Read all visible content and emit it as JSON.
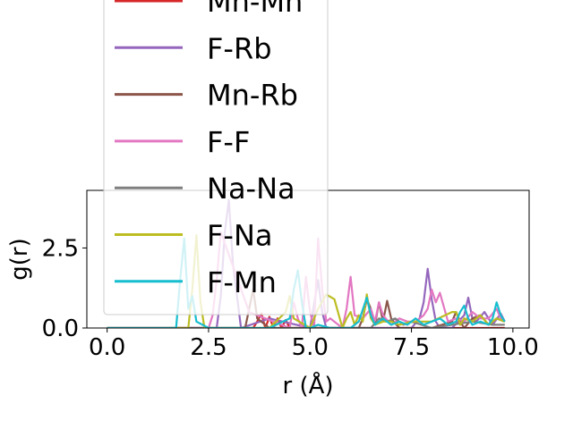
{
  "chart_data": {
    "type": "line",
    "title": "",
    "xlabel": "r (Å)",
    "ylabel": "g(r)",
    "xlim": [
      -0.5,
      10.4
    ],
    "ylim": [
      0,
      4.3
    ],
    "xticks": [
      "0.0",
      "2.5",
      "5.0",
      "7.5",
      "10.0"
    ],
    "yticks": [
      "0.0",
      "2.5"
    ],
    "legend_placement": "upper-left",
    "series": [
      {
        "name": "Mn-Mn",
        "color": "#d62728",
        "x": [
          0,
          1,
          2,
          3,
          3.6,
          3.7,
          3.8,
          3.9,
          4.0,
          4.1,
          4.2,
          4.3,
          4.4,
          4.5,
          4.6,
          5,
          6,
          7,
          8,
          9,
          9.8
        ],
        "y": [
          0,
          0,
          0,
          0,
          0,
          0.2,
          0.45,
          0,
          0.35,
          0,
          0.3,
          0,
          0.25,
          0,
          0,
          0,
          0,
          0,
          0,
          0,
          0
        ]
      },
      {
        "name": "F-Rb",
        "color": "#9467bd",
        "x": [
          0,
          1,
          2,
          2.7,
          2.8,
          2.9,
          3.0,
          3.1,
          3.2,
          3.3,
          4,
          5,
          5.2,
          5.3,
          5.4,
          6,
          7,
          7.5,
          7.7,
          7.8,
          7.9,
          8.0,
          8.1,
          8.2,
          8.5,
          8.8,
          8.9,
          9.0,
          9.1,
          9.3,
          9.5,
          9.7,
          9.8
        ],
        "y": [
          0,
          0,
          0,
          0,
          1.0,
          3.0,
          4.0,
          2.0,
          1.0,
          0,
          0.3,
          0,
          1.5,
          0.5,
          0,
          0,
          0,
          0,
          0.3,
          0.8,
          1.85,
          0.9,
          0.2,
          0,
          0,
          0.4,
          0.95,
          0.3,
          0.2,
          0.5,
          0.1,
          0.45,
          0.2
        ]
      },
      {
        "name": "Mn-Rb",
        "color": "#8c564b",
        "x": [
          0,
          1,
          2,
          3,
          3.4,
          3.5,
          3.6,
          3.7,
          4,
          5,
          6,
          6.2,
          6.3,
          6.4,
          6.5,
          6.6,
          6.7,
          6.8,
          6.9,
          7.0,
          7.2,
          7.5,
          8,
          8.5,
          8.6,
          8.7,
          8.8,
          9,
          9.2,
          9.4,
          9.6,
          9.8
        ],
        "y": [
          0,
          0,
          0,
          0,
          0,
          0.6,
          1.2,
          0.3,
          0,
          0,
          0,
          0,
          0.3,
          0.9,
          0.6,
          0.1,
          0.8,
          0.2,
          0.85,
          0.3,
          0,
          0,
          0,
          0.2,
          0.5,
          0.2,
          0,
          0.3,
          0.4,
          0.1,
          0.3,
          0.2
        ]
      },
      {
        "name": "F-F",
        "color": "#e377c2",
        "x": [
          0,
          1,
          2,
          2.5,
          2.6,
          2.7,
          2.8,
          3.5,
          4.5,
          4.6,
          4.7,
          4.8,
          4.9,
          5.0,
          5.1,
          5.2,
          5.3,
          5.4,
          5.5,
          5.8,
          5.9,
          6.0,
          6.1,
          6.3,
          6.5,
          6.6,
          6.7,
          6.8,
          7,
          7.2,
          7.4,
          7.6,
          7.8,
          7.9,
          8.0,
          8.1,
          8.2,
          8.4,
          8.6,
          8.8,
          9.0,
          9.2,
          9.4,
          9.6,
          9.7,
          9.8
        ],
        "y": [
          0,
          0,
          0,
          0,
          0.4,
          1.5,
          3.0,
          0.5,
          0,
          0.8,
          0.3,
          0,
          1.6,
          0.5,
          0,
          2.8,
          1.2,
          0.2,
          0.3,
          0,
          0.6,
          1.6,
          0.4,
          0.3,
          0.6,
          0.2,
          0.8,
          0.4,
          0.1,
          0.3,
          0.2,
          0.2,
          0.4,
          0.6,
          1.2,
          0.8,
          1.1,
          0.2,
          0.3,
          0.2,
          0.5,
          0.3,
          0.3,
          0.6,
          0.3,
          0.2
        ]
      },
      {
        "name": "Na-Na",
        "color": "#7f7f7f",
        "x": [
          0,
          1,
          2,
          3,
          4,
          5,
          6,
          6.5,
          6.7,
          6.9,
          7.1,
          7.3,
          7.5,
          8,
          8.5,
          9,
          9.5,
          9.8
        ],
        "y": [
          0,
          0,
          0,
          0,
          0,
          0,
          0,
          0,
          0.3,
          0.2,
          0.3,
          0.1,
          0.2,
          0,
          0.1,
          0.2,
          0.1,
          0.1
        ]
      },
      {
        "name": "F-Na",
        "color": "#bcbd22",
        "x": [
          0,
          1,
          2,
          2.0,
          2.1,
          2.2,
          2.3,
          2.4,
          3,
          4,
          4.4,
          4.5,
          4.6,
          5,
          5.2,
          5.4,
          5.6,
          5.8,
          5.9,
          6.0,
          6.1,
          6.2,
          6.3,
          6.4,
          6.5,
          6.6,
          6.8,
          7,
          7.2,
          7.5,
          8,
          8.5,
          8.6,
          8.7,
          8.8,
          9,
          9.2,
          9.4,
          9.6,
          9.8
        ],
        "y": [
          0,
          0,
          0,
          0,
          1.2,
          2.9,
          0.8,
          0,
          0,
          0,
          0.5,
          1.0,
          0.3,
          0,
          0.6,
          1.05,
          0.9,
          0,
          0.3,
          0.5,
          0.1,
          0.4,
          0.2,
          1.05,
          0.3,
          0.1,
          0.2,
          0.2,
          0.1,
          0.2,
          0.2,
          0.5,
          0.5,
          0.1,
          0.3,
          0.2,
          0.4,
          0.1,
          0.3,
          0.2
        ]
      },
      {
        "name": "F-Mn",
        "color": "#17becf",
        "x": [
          0,
          1,
          1.7,
          1.8,
          1.9,
          2.0,
          2.1,
          2.2,
          2.5,
          3,
          4,
          4.5,
          4.6,
          4.7,
          4.8,
          4.9,
          5,
          5.2,
          5.5,
          6,
          6.2,
          6.4,
          6.5,
          6.6,
          6.8,
          7,
          7.2,
          7.4,
          7.6,
          7.8,
          8,
          8.2,
          8.4,
          8.6,
          8.7,
          8.8,
          8.9,
          9.0,
          9.2,
          9.4,
          9.5,
          9.6,
          9.7,
          9.8
        ],
        "y": [
          0,
          0,
          0,
          1.5,
          2.8,
          0.6,
          1.0,
          0.2,
          0,
          0,
          0,
          0.3,
          1.2,
          1.8,
          0.8,
          0,
          0,
          0.1,
          0,
          0,
          0.2,
          0.95,
          0.4,
          0.1,
          0.3,
          0.1,
          0.2,
          0.1,
          0.3,
          0.1,
          0.2,
          0.3,
          0.1,
          0.2,
          0.5,
          0.7,
          0.3,
          0.1,
          0.2,
          0.1,
          0.3,
          0.8,
          0.4,
          0.2
        ]
      }
    ]
  }
}
